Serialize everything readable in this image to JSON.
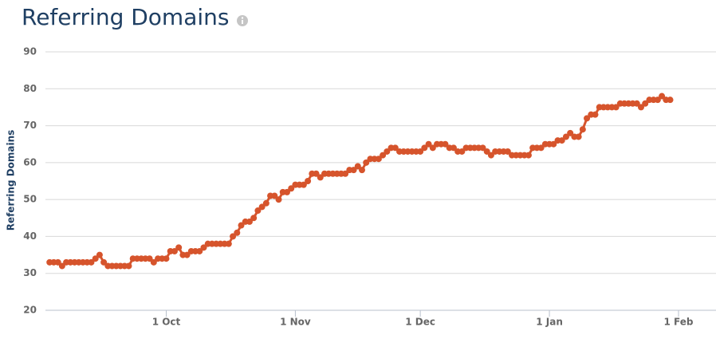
{
  "chart_data": {
    "type": "line",
    "title": "Referring Domains",
    "y_label": "Referring Domains",
    "color": "#d6542c",
    "grid": true,
    "ylim": [
      20,
      90
    ],
    "yticks": [
      20,
      30,
      40,
      50,
      60,
      70,
      80,
      90
    ],
    "xlim": [
      "2 Sep",
      "10 Feb"
    ],
    "xticks": [
      "1 Oct",
      "1 Nov",
      "1 Dec",
      "1 Jan",
      "1 Feb"
    ],
    "x": [
      "3 Sep",
      "4 Sep",
      "5 Sep",
      "6 Sep",
      "7 Sep",
      "8 Sep",
      "9 Sep",
      "10 Sep",
      "11 Sep",
      "12 Sep",
      "13 Sep",
      "14 Sep",
      "15 Sep",
      "16 Sep",
      "17 Sep",
      "18 Sep",
      "19 Sep",
      "20 Sep",
      "21 Sep",
      "22 Sep",
      "23 Sep",
      "24 Sep",
      "25 Sep",
      "26 Sep",
      "27 Sep",
      "28 Sep",
      "29 Sep",
      "30 Sep",
      "1 Oct",
      "2 Oct",
      "3 Oct",
      "4 Oct",
      "5 Oct",
      "6 Oct",
      "7 Oct",
      "8 Oct",
      "9 Oct",
      "10 Oct",
      "11 Oct",
      "12 Oct",
      "13 Oct",
      "14 Oct",
      "15 Oct",
      "16 Oct",
      "17 Oct",
      "18 Oct",
      "19 Oct",
      "20 Oct",
      "21 Oct",
      "22 Oct",
      "23 Oct",
      "24 Oct",
      "25 Oct",
      "26 Oct",
      "27 Oct",
      "28 Oct",
      "29 Oct",
      "30 Oct",
      "31 Oct",
      "1 Nov",
      "2 Nov",
      "3 Nov",
      "4 Nov",
      "5 Nov",
      "6 Nov",
      "7 Nov",
      "8 Nov",
      "9 Nov",
      "10 Nov",
      "11 Nov",
      "12 Nov",
      "13 Nov",
      "14 Nov",
      "15 Nov",
      "16 Nov",
      "17 Nov",
      "18 Nov",
      "19 Nov",
      "20 Nov",
      "21 Nov",
      "22 Nov",
      "23 Nov",
      "24 Nov",
      "25 Nov",
      "26 Nov",
      "27 Nov",
      "28 Nov",
      "29 Nov",
      "30 Nov",
      "1 Dec",
      "2 Dec",
      "3 Dec",
      "4 Dec",
      "5 Dec",
      "6 Dec",
      "7 Dec",
      "8 Dec",
      "9 Dec",
      "10 Dec",
      "11 Dec",
      "12 Dec",
      "13 Dec",
      "14 Dec",
      "15 Dec",
      "16 Dec",
      "17 Dec",
      "18 Dec",
      "19 Dec",
      "20 Dec",
      "21 Dec",
      "22 Dec",
      "23 Dec",
      "24 Dec",
      "25 Dec",
      "26 Dec",
      "27 Dec",
      "28 Dec",
      "29 Dec",
      "30 Dec",
      "31 Dec",
      "1 Jan",
      "2 Jan",
      "3 Jan",
      "4 Jan",
      "5 Jan",
      "6 Jan",
      "7 Jan",
      "8 Jan",
      "9 Jan",
      "10 Jan",
      "11 Jan",
      "12 Jan",
      "13 Jan",
      "14 Jan",
      "15 Jan",
      "16 Jan",
      "17 Jan",
      "18 Jan",
      "19 Jan",
      "20 Jan",
      "21 Jan",
      "22 Jan",
      "23 Jan",
      "24 Jan",
      "25 Jan",
      "26 Jan",
      "27 Jan",
      "28 Jan",
      "29 Jan",
      "30 Jan"
    ],
    "values": [
      33,
      33,
      33,
      32,
      33,
      33,
      33,
      33,
      33,
      33,
      33,
      34,
      35,
      33,
      32,
      32,
      32,
      32,
      32,
      32,
      34,
      34,
      34,
      34,
      34,
      33,
      34,
      34,
      34,
      36,
      36,
      37,
      35,
      35,
      36,
      36,
      36,
      37,
      38,
      38,
      38,
      38,
      38,
      38,
      40,
      41,
      43,
      44,
      44,
      45,
      47,
      48,
      49,
      51,
      51,
      50,
      52,
      52,
      53,
      54,
      54,
      54,
      55,
      57,
      57,
      56,
      57,
      57,
      57,
      57,
      57,
      57,
      58,
      58,
      59,
      58,
      60,
      61,
      61,
      61,
      62,
      63,
      64,
      64,
      63,
      63,
      63,
      63,
      63,
      63,
      64,
      65,
      64,
      65,
      65,
      65,
      64,
      64,
      63,
      63,
      64,
      64,
      64,
      64,
      64,
      63,
      62,
      63,
      63,
      63,
      63,
      62,
      62,
      62,
      62,
      62,
      64,
      64,
      64,
      65,
      65,
      65,
      66,
      66,
      67,
      68,
      67,
      67,
      69,
      72,
      73,
      73,
      75,
      75,
      75,
      75,
      75,
      76,
      76,
      76,
      76,
      76,
      75,
      76,
      77,
      77,
      77,
      78,
      77,
      77
    ]
  }
}
